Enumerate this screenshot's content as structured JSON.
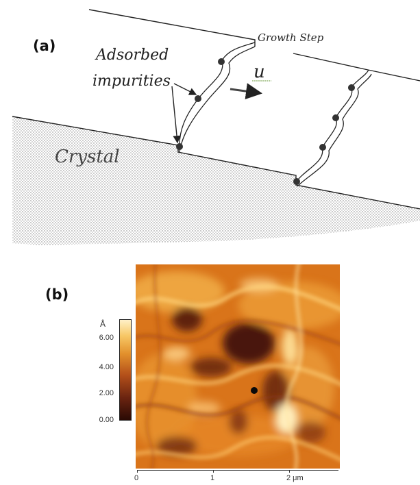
{
  "panel_a": {
    "label": "(a)",
    "step_label": "Growth Step",
    "impurity_label_line1": "Adsorbed",
    "impurity_label_line2": "impurities",
    "velocity_symbol": "u",
    "crystal_label": "Crystal"
  },
  "panel_b": {
    "label": "(b)",
    "colorbar_unit": "Å",
    "colorbar_ticks": [
      "6.00",
      "4.00",
      "2.00",
      "0.00"
    ],
    "x_ticks": [
      "0",
      "1",
      "2 μm"
    ],
    "colors": {
      "dark": "#3a1208",
      "mid": "#d9741a",
      "light": "#ffe7a0"
    }
  }
}
